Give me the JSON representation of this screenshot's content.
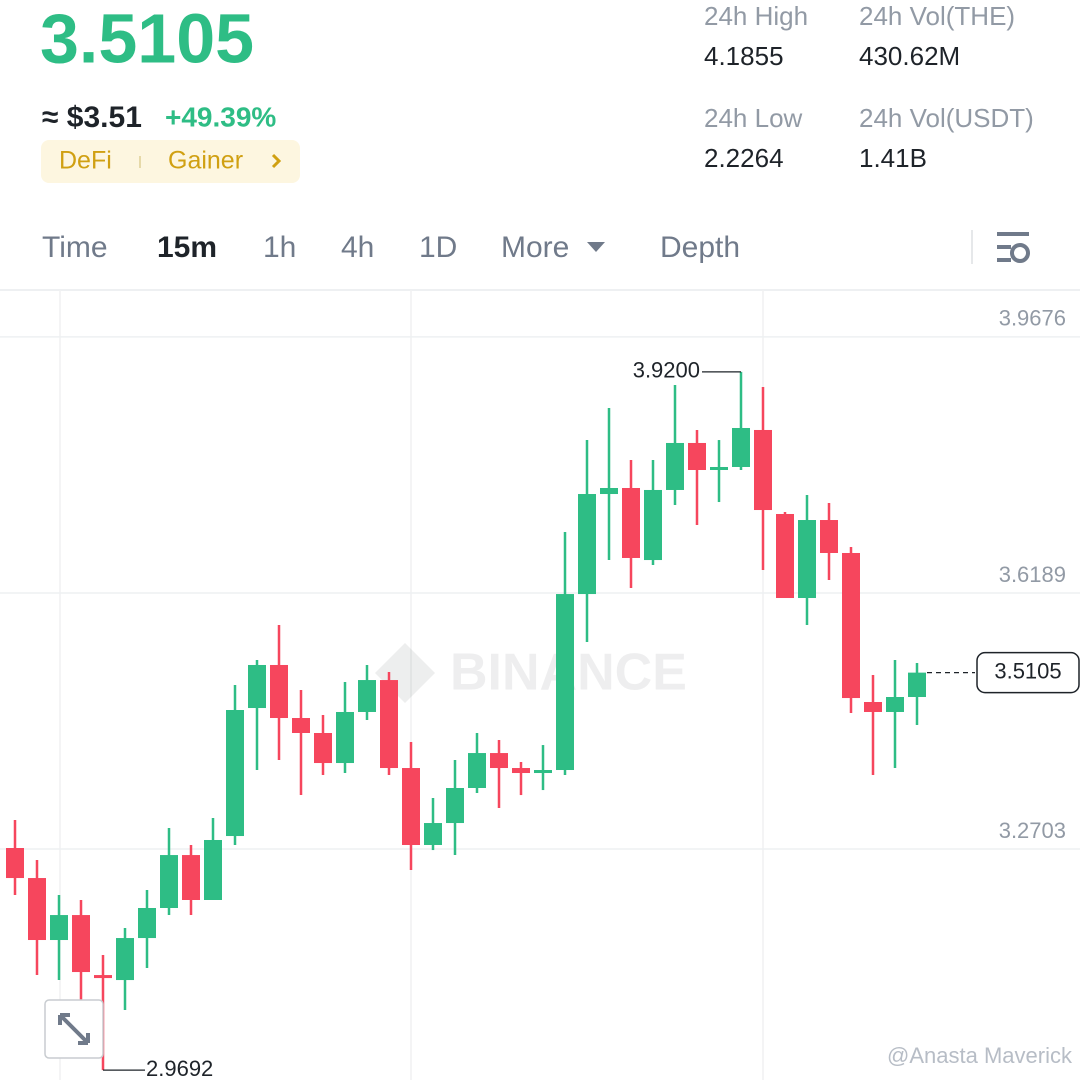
{
  "header": {
    "price": "3.5105",
    "fiat": "≈ $3.51",
    "change": "+49.39%",
    "tags": [
      "DeFi",
      "Gainer"
    ]
  },
  "stats": [
    {
      "label": "24h High",
      "value": "4.1855"
    },
    {
      "label": "24h Vol(THE)",
      "value": "430.62M"
    },
    {
      "label": "24h Low",
      "value": "2.2264"
    },
    {
      "label": "24h Vol(USDT)",
      "value": "1.41B"
    }
  ],
  "tabs": [
    "Time",
    "15m",
    "1h",
    "4h",
    "1D",
    "More",
    "Depth"
  ],
  "active_tab": 1,
  "chart_data": {
    "type": "candlestick",
    "open": [
      3.2717,
      3.2308,
      3.1464,
      3.1804,
      3.0987,
      3.0919,
      3.1491,
      3.19,
      3.2621,
      3.2009,
      3.288,
      3.4623,
      3.5209,
      3.4487,
      3.4283,
      3.3874,
      3.4569,
      3.5004,
      3.3806,
      3.2758,
      3.3057,
      3.3534,
      3.401,
      3.3806,
      3.3738,
      3.3779,
      3.6175,
      3.7537,
      3.7619,
      3.6638,
      3.7592,
      3.8232,
      3.7864,
      3.7905,
      3.8409,
      3.7265,
      3.6121,
      3.7183,
      3.6734,
      3.4705,
      3.4569,
      3.4773
    ],
    "high": [
      3.3098,
      3.2553,
      3.2077,
      3.2009,
      3.126,
      3.1627,
      3.2145,
      3.2989,
      3.2758,
      3.3125,
      3.4936,
      3.5277,
      3.5753,
      3.4868,
      3.4528,
      3.4977,
      3.5209,
      3.5113,
      3.416,
      3.3398,
      3.3915,
      3.4283,
      3.4187,
      3.3888,
      3.4119,
      3.702,
      3.8272,
      3.8708,
      3.8,
      3.8,
      3.9021,
      3.8409,
      3.8272,
      3.92,
      3.8994,
      3.7292,
      3.7523,
      3.7415,
      3.6815,
      3.5072,
      3.5277,
      3.5236
    ],
    "low": [
      3.2077,
      3.0987,
      3.0919,
      3.0647,
      2.9692,
      3.0511,
      3.1083,
      3.1804,
      3.1804,
      3.2009,
      3.2758,
      3.3779,
      3.3915,
      3.3438,
      3.3711,
      3.3738,
      3.446,
      3.3711,
      3.2417,
      3.2689,
      3.2621,
      3.3466,
      3.3261,
      3.3438,
      3.3506,
      3.3711,
      3.5522,
      3.6638,
      3.6257,
      3.657,
      3.7387,
      3.7115,
      3.7428,
      3.7864,
      3.6502,
      3.6121,
      3.5753,
      3.6366,
      3.4555,
      3.3711,
      3.3806,
      3.4392
    ],
    "close": [
      3.2308,
      3.1464,
      3.1804,
      3.1028,
      3.0946,
      3.1491,
      3.19,
      3.2621,
      3.2009,
      3.2826,
      3.4596,
      3.5209,
      3.4487,
      3.4283,
      3.3874,
      3.4569,
      3.5004,
      3.3806,
      3.2758,
      3.3057,
      3.3534,
      3.401,
      3.3806,
      3.3738,
      3.3779,
      3.6175,
      3.7537,
      3.7619,
      3.6666,
      3.7592,
      3.8232,
      3.7864,
      3.7905,
      3.8436,
      3.7319,
      3.6121,
      3.7183,
      3.6734,
      3.4759,
      3.4569,
      3.4773,
      3.5105
    ],
    "up_color": "#2ebd85",
    "down_color": "#f6465d",
    "ylim": [
      2.9558,
      4.0315
    ],
    "yticks": [
      3.2703,
      3.6189,
      3.9676
    ],
    "grid": true,
    "annotations": {
      "max": "3.9200",
      "min": "2.9692"
    }
  },
  "watermark": "BINANCE",
  "credit": "@Anasta Maverick"
}
